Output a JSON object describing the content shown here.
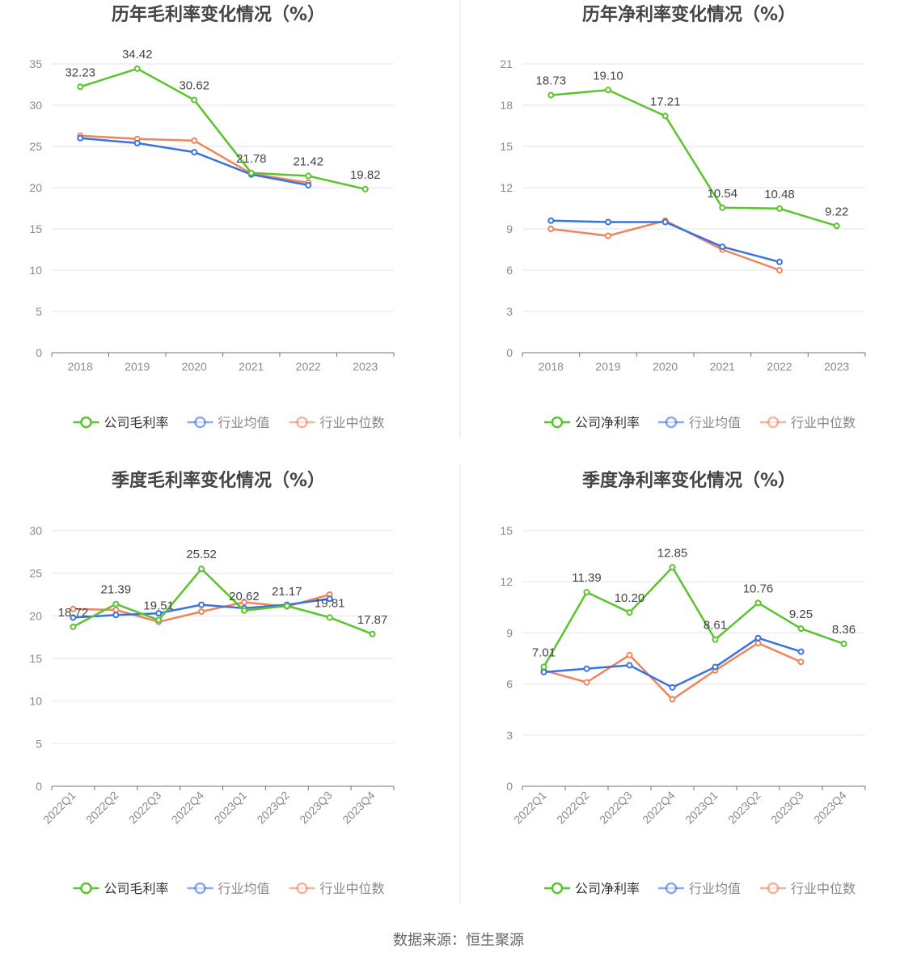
{
  "colors": {
    "company": "#5ac42c",
    "industry_avg": "#3a72e0",
    "industry_median": "#f0845a",
    "grid": "#e3e6ef",
    "axis": "#6e7079",
    "tick_text": "#8a8a8a",
    "title_text": "#444444",
    "label_text": "#444444",
    "divider": "#e6e6e6"
  },
  "source": "数据来源：恒生聚源",
  "chart_data": [
    {
      "type": "line",
      "title": "历年毛利率变化情况（%）",
      "categories": [
        "2018",
        "2019",
        "2020",
        "2021",
        "2022",
        "2023"
      ],
      "ylim": [
        0,
        35
      ],
      "yticks": [
        0,
        5,
        10,
        15,
        20,
        25,
        30,
        35
      ],
      "rotate_x": false,
      "legend": [
        "公司毛利率",
        "行业均值",
        "行业中位数"
      ],
      "series": [
        {
          "name": "公司毛利率",
          "color": "company",
          "labels": true,
          "values": [
            32.23,
            34.42,
            30.62,
            21.78,
            21.42,
            19.82
          ]
        },
        {
          "name": "行业均值",
          "color": "industry_avg",
          "labels": false,
          "values": [
            26.0,
            25.4,
            24.3,
            21.6,
            20.3,
            null
          ]
        },
        {
          "name": "行业中位数",
          "color": "industry_median",
          "labels": false,
          "values": [
            26.3,
            25.9,
            25.7,
            21.7,
            20.6,
            null
          ]
        }
      ]
    },
    {
      "type": "line",
      "title": "历年净利率变化情况（%）",
      "categories": [
        "2018",
        "2019",
        "2020",
        "2021",
        "2022",
        "2023"
      ],
      "ylim": [
        0,
        21
      ],
      "yticks": [
        0,
        3,
        6,
        9,
        12,
        15,
        18,
        21
      ],
      "rotate_x": false,
      "legend": [
        "公司净利率",
        "行业均值",
        "行业中位数"
      ],
      "series": [
        {
          "name": "公司净利率",
          "color": "company",
          "labels": true,
          "values": [
            18.73,
            19.1,
            17.21,
            10.54,
            10.48,
            9.22
          ]
        },
        {
          "name": "行业均值",
          "color": "industry_avg",
          "labels": false,
          "values": [
            9.6,
            9.5,
            9.5,
            7.7,
            6.6,
            null
          ]
        },
        {
          "name": "行业中位数",
          "color": "industry_median",
          "labels": false,
          "values": [
            9.0,
            8.5,
            9.6,
            7.5,
            6.0,
            null
          ]
        }
      ],
      "label_text": [
        "18.73",
        "19.10",
        "17.21",
        "10.54",
        "10.48",
        "9.22"
      ]
    },
    {
      "type": "line",
      "title": "季度毛利率变化情况（%）",
      "categories": [
        "2022Q1",
        "2022Q2",
        "2022Q3",
        "2022Q4",
        "2023Q1",
        "2023Q2",
        "2023Q3",
        "2023Q4"
      ],
      "ylim": [
        0,
        30
      ],
      "yticks": [
        0,
        5,
        10,
        15,
        20,
        25,
        30
      ],
      "rotate_x": true,
      "legend": [
        "公司毛利率",
        "行业均值",
        "行业中位数"
      ],
      "series": [
        {
          "name": "公司毛利率",
          "color": "company",
          "labels": true,
          "values": [
            18.72,
            21.39,
            19.51,
            25.52,
            20.62,
            21.17,
            19.81,
            17.87
          ]
        },
        {
          "name": "行业均值",
          "color": "industry_avg",
          "labels": false,
          "values": [
            19.8,
            20.1,
            20.3,
            21.3,
            20.9,
            21.3,
            22.0,
            null
          ]
        },
        {
          "name": "行业中位数",
          "color": "industry_median",
          "labels": false,
          "values": [
            20.8,
            20.7,
            19.3,
            20.5,
            21.6,
            21.1,
            22.5,
            null
          ]
        }
      ]
    },
    {
      "type": "line",
      "title": "季度净利率变化情况（%）",
      "categories": [
        "2022Q1",
        "2022Q2",
        "2022Q3",
        "2022Q4",
        "2023Q1",
        "2023Q2",
        "2023Q3",
        "2023Q4"
      ],
      "ylim": [
        0,
        15
      ],
      "yticks": [
        0,
        3,
        6,
        9,
        12,
        15
      ],
      "rotate_x": true,
      "legend": [
        "公司净利率",
        "行业均值",
        "行业中位数"
      ],
      "series": [
        {
          "name": "公司净利率",
          "color": "company",
          "labels": true,
          "values": [
            7.01,
            11.39,
            10.2,
            12.85,
            8.61,
            10.76,
            9.25,
            8.36
          ]
        },
        {
          "name": "行业均值",
          "color": "industry_avg",
          "labels": false,
          "values": [
            6.7,
            6.9,
            7.1,
            5.8,
            7.0,
            8.7,
            7.9,
            null
          ]
        },
        {
          "name": "行业中位数",
          "color": "industry_median",
          "labels": false,
          "values": [
            6.8,
            6.1,
            7.7,
            5.1,
            6.8,
            8.4,
            7.3,
            null
          ]
        }
      ],
      "label_text": [
        "7.01",
        "11.39",
        "10.20",
        "12.85",
        "8.61",
        "10.76",
        "9.25",
        "8.36"
      ]
    }
  ]
}
